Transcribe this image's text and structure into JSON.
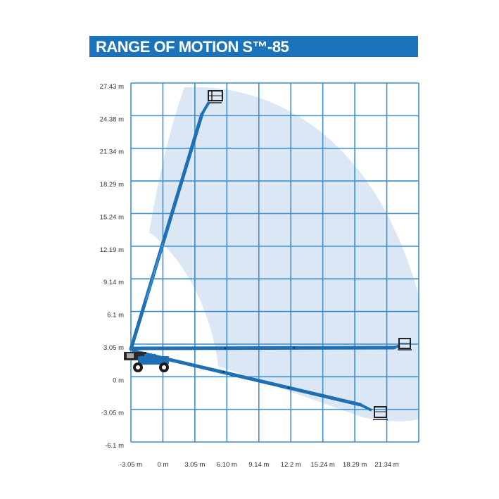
{
  "title": "RANGE OF MOTION S™-85",
  "chart_data": {
    "type": "diagram",
    "y_ticks": [
      "27.43 m",
      "24.38 m",
      "21.34 m",
      "18.29 m",
      "15.24 m",
      "12.19 m",
      "9.14 m",
      "6.1 m",
      "3.05 m",
      "0 m",
      "-3.05 m",
      "-6.1 m"
    ],
    "x_ticks": [
      "-3.05 m",
      "0 m",
      "3.05 m",
      "6.10 m",
      "9.14 m",
      "12.2 m",
      "15.24 m",
      "18.29 m",
      "21.34 m"
    ],
    "y_range_m": [
      -6.1,
      27.43
    ],
    "x_range_m": [
      -3.05,
      24.38
    ],
    "grid": true,
    "colors": {
      "title_bar": "#1a73bb",
      "grid": "#3c8fd0",
      "envelope": "#dce7f5",
      "boom": "#1f6fb4",
      "machine": "#1f6fb4"
    },
    "boom_positions": [
      {
        "tip_x_m": 5.0,
        "tip_y_m": 24.4,
        "platform_y_m": 26.2
      },
      {
        "tip_x_m": 22.3,
        "tip_y_m": 2.8,
        "platform_y_m": 3.1
      },
      {
        "tip_x_m": 20.4,
        "tip_y_m": -3.3,
        "platform_y_m": -3.5
      }
    ]
  }
}
